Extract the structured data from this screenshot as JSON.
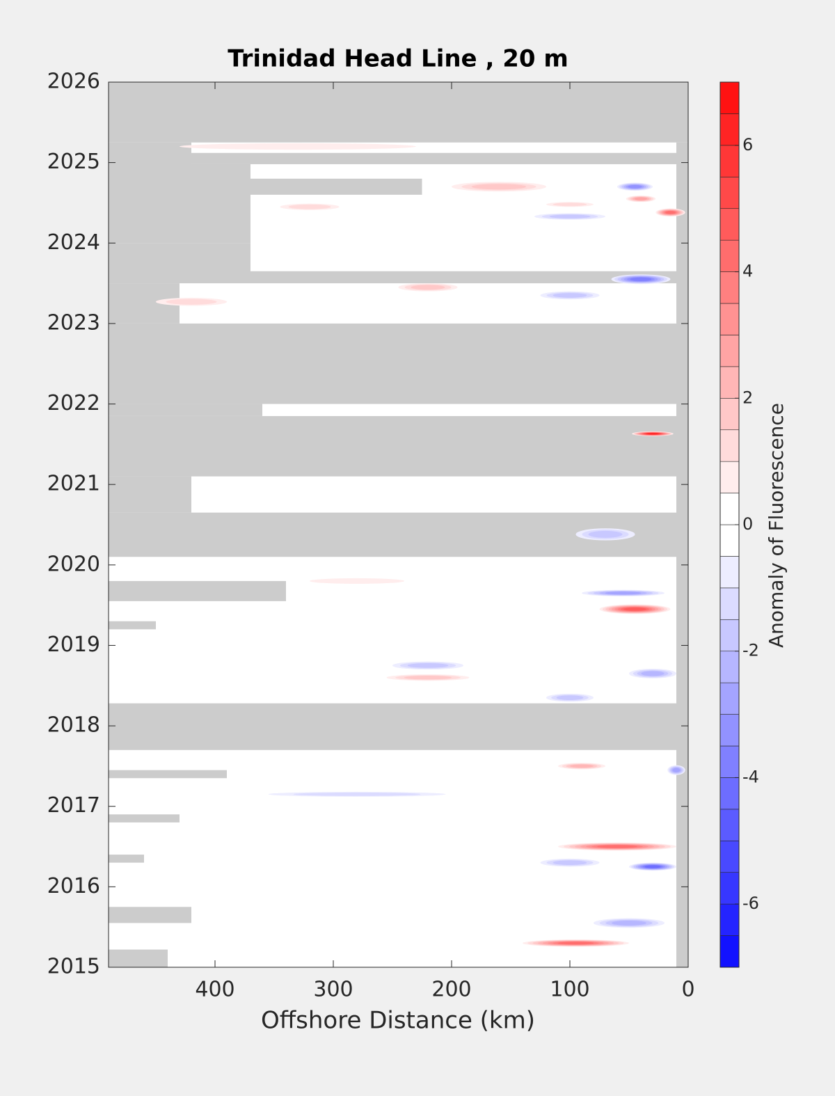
{
  "chart_data": {
    "type": "contour",
    "title": "Trinidad Head Line , 20 m",
    "xlabel": "Offshore Distance (km)",
    "colorbar_label": "Anomaly of Fluorescence",
    "xlim": [
      490,
      0
    ],
    "xticks": [
      400,
      300,
      200,
      100,
      0
    ],
    "ylim": [
      2015,
      2026
    ],
    "yticks": [
      2015,
      2016,
      2017,
      2018,
      2019,
      2020,
      2021,
      2022,
      2023,
      2024,
      2025,
      2026
    ],
    "clim": [
      -7,
      7
    ],
    "cticks": [
      -6,
      -4,
      -2,
      0,
      2,
      4,
      6
    ],
    "contour_step": 0.5,
    "positive_color": "#ff0000",
    "negative_color": "#0000ff",
    "nodata_color": "#cccccc",
    "nodata": [
      {
        "x0": 490,
        "x1": 0,
        "y0": 2025.25,
        "y1": 2026
      },
      {
        "x0": 10,
        "x1": 0,
        "y0": 2015,
        "y1": 2025.25
      },
      {
        "x0": 490,
        "x1": 420,
        "y0": 2024.3,
        "y1": 2025.25
      },
      {
        "x0": 490,
        "x1": 0,
        "y0": 2024.98,
        "y1": 2025.12
      },
      {
        "x0": 490,
        "x1": 370,
        "y0": 2024.0,
        "y1": 2024.98
      },
      {
        "x0": 370,
        "x1": 225,
        "y0": 2024.6,
        "y1": 2024.8
      },
      {
        "x0": 490,
        "x1": 370,
        "y0": 2023.5,
        "y1": 2024.0
      },
      {
        "x0": 370,
        "x1": 10,
        "y0": 2023.5,
        "y1": 2023.65
      },
      {
        "x0": 490,
        "x1": 430,
        "y0": 2023.0,
        "y1": 2023.5
      },
      {
        "x0": 490,
        "x1": 0,
        "y0": 2022.0,
        "y1": 2023.0
      },
      {
        "x0": 490,
        "x1": 360,
        "y0": 2021.85,
        "y1": 2022.0
      },
      {
        "x0": 490,
        "x1": 0,
        "y0": 2021.1,
        "y1": 2021.85
      },
      {
        "x0": 490,
        "x1": 420,
        "y0": 2020.65,
        "y1": 2021.1
      },
      {
        "x0": 490,
        "x1": 0,
        "y0": 2020.1,
        "y1": 2020.65
      },
      {
        "x0": 490,
        "x1": 340,
        "y0": 2019.55,
        "y1": 2019.8
      },
      {
        "x0": 490,
        "x1": 450,
        "y0": 2019.2,
        "y1": 2019.3
      },
      {
        "x0": 490,
        "x1": 10,
        "y0": 2017.7,
        "y1": 2018.28
      },
      {
        "x0": 490,
        "x1": 390,
        "y0": 2017.35,
        "y1": 2017.45
      },
      {
        "x0": 490,
        "x1": 430,
        "y0": 2016.8,
        "y1": 2016.9
      },
      {
        "x0": 490,
        "x1": 460,
        "y0": 2016.3,
        "y1": 2016.4
      },
      {
        "x0": 490,
        "x1": 420,
        "y0": 2015.55,
        "y1": 2015.75
      },
      {
        "x0": 490,
        "x1": 440,
        "y0": 2015,
        "y1": 2015.22
      }
    ],
    "features": [
      {
        "x": 330,
        "y": 2025.2,
        "value": 0.7,
        "width": 200,
        "height": 0.08
      },
      {
        "x": 160,
        "y": 2024.7,
        "value": 1.8,
        "width": 80,
        "height": 0.12
      },
      {
        "x": 45,
        "y": 2024.7,
        "value": -3.2,
        "width": 30,
        "height": 0.1
      },
      {
        "x": 40,
        "y": 2024.55,
        "value": 2.5,
        "width": 25,
        "height": 0.08
      },
      {
        "x": 15,
        "y": 2024.38,
        "value": 4,
        "width": 25,
        "height": 0.1
      },
      {
        "x": 100,
        "y": 2024.48,
        "value": 1.2,
        "width": 40,
        "height": 0.06
      },
      {
        "x": 100,
        "y": 2024.33,
        "value": -1.5,
        "width": 60,
        "height": 0.08
      },
      {
        "x": 320,
        "y": 2024.45,
        "value": 1.2,
        "width": 50,
        "height": 0.08
      },
      {
        "x": 40,
        "y": 2023.55,
        "value": -3.5,
        "width": 50,
        "height": 0.12
      },
      {
        "x": 220,
        "y": 2023.45,
        "value": 1.8,
        "width": 50,
        "height": 0.1
      },
      {
        "x": 100,
        "y": 2023.35,
        "value": -1.6,
        "width": 50,
        "height": 0.1
      },
      {
        "x": 420,
        "y": 2023.27,
        "value": 1.3,
        "width": 60,
        "height": 0.1
      },
      {
        "x": 30,
        "y": 2021.63,
        "value": 6,
        "width": 35,
        "height": 0.06
      },
      {
        "x": 70,
        "y": 2020.38,
        "value": -1.6,
        "width": 50,
        "height": 0.15
      },
      {
        "x": 45,
        "y": 2019.45,
        "value": 4.5,
        "width": 60,
        "height": 0.12
      },
      {
        "x": 55,
        "y": 2019.65,
        "value": -2.5,
        "width": 70,
        "height": 0.08
      },
      {
        "x": 30,
        "y": 2018.65,
        "value": -2.4,
        "width": 40,
        "height": 0.12
      },
      {
        "x": 220,
        "y": 2018.75,
        "value": -1.8,
        "width": 60,
        "height": 0.1
      },
      {
        "x": 220,
        "y": 2018.6,
        "value": 1.8,
        "width": 70,
        "height": 0.08
      },
      {
        "x": 100,
        "y": 2018.35,
        "value": -1.7,
        "width": 40,
        "height": 0.1
      },
      {
        "x": 90,
        "y": 2017.5,
        "value": 2.3,
        "width": 40,
        "height": 0.08
      },
      {
        "x": 10,
        "y": 2017.45,
        "value": -2.5,
        "width": 15,
        "height": 0.12
      },
      {
        "x": 60,
        "y": 2016.5,
        "value": 4.4,
        "width": 100,
        "height": 0.1
      },
      {
        "x": 30,
        "y": 2016.25,
        "value": -4.2,
        "width": 40,
        "height": 0.1
      },
      {
        "x": 100,
        "y": 2016.3,
        "value": -1.8,
        "width": 50,
        "height": 0.1
      },
      {
        "x": 95,
        "y": 2015.3,
        "value": 4,
        "width": 90,
        "height": 0.09
      },
      {
        "x": 50,
        "y": 2015.55,
        "value": -2.2,
        "width": 60,
        "height": 0.12
      },
      {
        "x": 280,
        "y": 2017.15,
        "value": -1,
        "width": 150,
        "height": 0.06
      },
      {
        "x": 280,
        "y": 2019.8,
        "value": 0.9,
        "width": 80,
        "height": 0.07
      }
    ]
  }
}
